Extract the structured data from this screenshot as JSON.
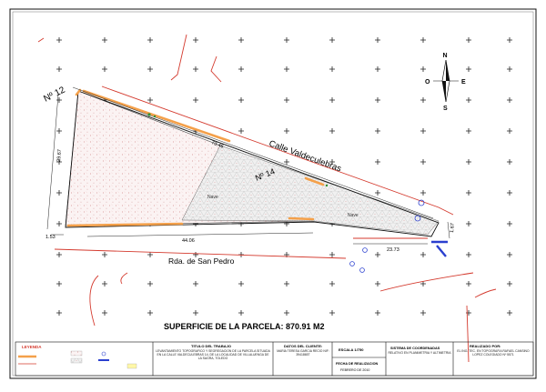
{
  "plan": {
    "north_letter": "N",
    "south_letter": "S",
    "east_letter": "E",
    "west_letter": "O",
    "parcel_12_label": "Nº 12",
    "parcel_14_label": "Nº 14",
    "street_north": "Calle  Valdeculebras",
    "street_south": "Rda. de San Pedro",
    "area_label_1": "Nave",
    "area_label_2": "Nave",
    "dimensions": {
      "top_edge": "73.46",
      "left_edge": "29.67",
      "bottom_edge": "44.06",
      "bottom_right": "23.73",
      "left_small": "1.53",
      "right_small": "1.67"
    },
    "surface_title": "SUPERFICIE DE LA PARCELA: 870.91 M2"
  },
  "title_block": {
    "legend_title": "LEYENDA",
    "trabajo_title": "TITULO DEL TRABAJO",
    "trabajo_text": "LEVANTAMIENTO TOPOGRAFICO Y SEGREGACION DE LA PARCELA SITUADA EN LA CALLE VALDECULEBRAS 14, DE LA LOCALIDAD DE VILLALUENGA DE LA SAGRA, TOLEDO",
    "cliente_title": "DATOS DEL CLIENTE:",
    "cliente_text": "MARIA TERESA GARCIA RECIO NIF: 3941865T",
    "escala_title": "ESCALA 1/750",
    "fecha_title": "FECHA DE REALIZACION",
    "fecha_text": "FEBRERO DE 2010",
    "sistema_title": "SISTEMA DE COORDENADAS",
    "sistema_text": "RELATIVO EN PLANIMETRIA Y ALTIMETRIA",
    "realizado_title": "REALIZADO POR:",
    "realizado_text": "EL ING. TEC. EN TOPOGRAFIA RAFAEL CANSINO LOPEZ COLEGIADO Nº 5571"
  },
  "colors": {
    "orange": "#f4a04a",
    "red": "#d43a2e",
    "blue": "#2a3fcf",
    "parcel_fill": "#f6eeee",
    "hatch_fill": "#ececec"
  }
}
